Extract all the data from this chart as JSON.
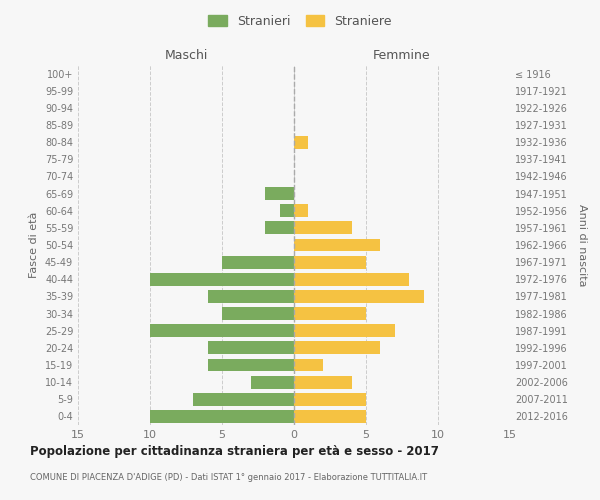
{
  "age_groups": [
    "0-4",
    "5-9",
    "10-14",
    "15-19",
    "20-24",
    "25-29",
    "30-34",
    "35-39",
    "40-44",
    "45-49",
    "50-54",
    "55-59",
    "60-64",
    "65-69",
    "70-74",
    "75-79",
    "80-84",
    "85-89",
    "90-94",
    "95-99",
    "100+"
  ],
  "birth_years": [
    "2012-2016",
    "2007-2011",
    "2002-2006",
    "1997-2001",
    "1992-1996",
    "1987-1991",
    "1982-1986",
    "1977-1981",
    "1972-1976",
    "1967-1971",
    "1962-1966",
    "1957-1961",
    "1952-1956",
    "1947-1951",
    "1942-1946",
    "1937-1941",
    "1932-1936",
    "1927-1931",
    "1922-1926",
    "1917-1921",
    "≤ 1916"
  ],
  "maschi": [
    10,
    7,
    3,
    6,
    6,
    10,
    5,
    6,
    10,
    5,
    0,
    2,
    1,
    2,
    0,
    0,
    0,
    0,
    0,
    0,
    0
  ],
  "femmine": [
    5,
    5,
    4,
    2,
    6,
    7,
    5,
    9,
    8,
    5,
    6,
    4,
    1,
    0,
    0,
    0,
    1,
    0,
    0,
    0,
    0
  ],
  "male_color": "#7aab5e",
  "female_color": "#f5c242",
  "background_color": "#f7f7f7",
  "grid_color": "#cccccc",
  "title": "Popolazione per cittadinanza straniera per età e sesso - 2017",
  "subtitle": "COMUNE DI PIACENZA D'ADIGE (PD) - Dati ISTAT 1° gennaio 2017 - Elaborazione TUTTITALIA.IT",
  "xlabel_left": "Maschi",
  "xlabel_right": "Femmine",
  "ylabel_left": "Fasce di età",
  "ylabel_right": "Anni di nascita",
  "legend_stranieri": "Stranieri",
  "legend_straniere": "Straniere",
  "xlim": 15
}
